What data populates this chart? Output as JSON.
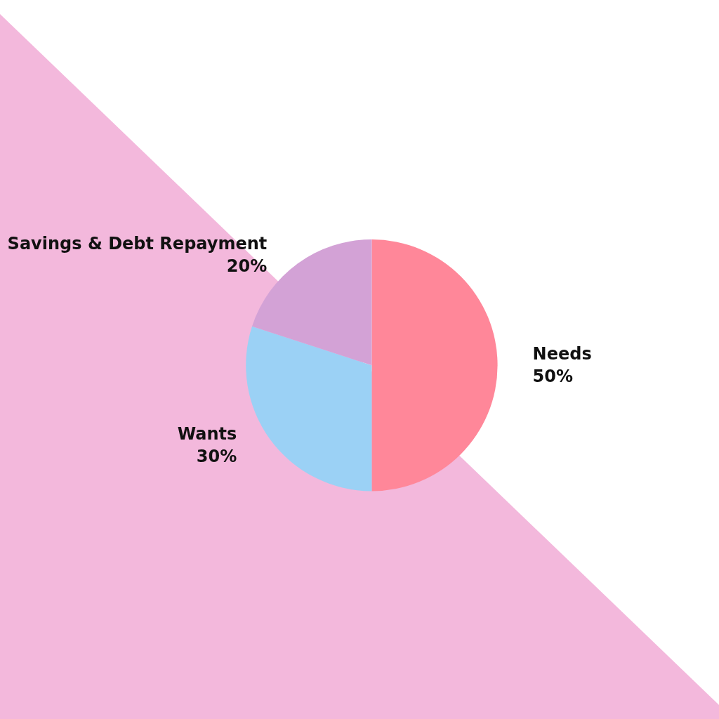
{
  "chart_data": {
    "type": "pie",
    "categories": [
      "Needs",
      "Wants",
      "Savings & Debt Repayment"
    ],
    "values": [
      50,
      30,
      20
    ],
    "value_labels": [
      "50%",
      "30%",
      "20%"
    ],
    "colors": [
      "#ff8799",
      "#9bd1f5",
      "#d3a2d6"
    ],
    "legend": false
  }
}
